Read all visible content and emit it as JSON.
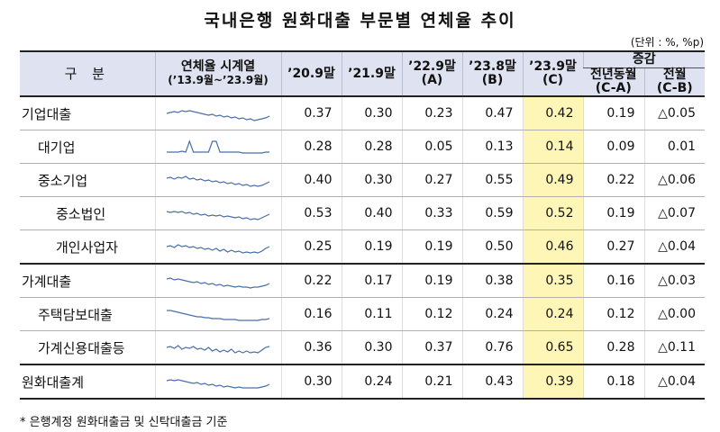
{
  "title": "국내은행 원화대출 부문별 연체율 추이",
  "unit": "(단위 : %, %p)",
  "header": {
    "category": "구 분",
    "spark_line1": "연체율 시계열",
    "spark_line2": "(’13.9월~’23.9월)",
    "col_209": "’20.9말",
    "col_219": "’21.9말",
    "col_229_line1": "’22.9말",
    "col_229_line2": "(A)",
    "col_238_line1": "’23.8말",
    "col_238_line2": "(B)",
    "col_239_line1": "’23.9말",
    "col_239_line2": "(C)",
    "change_group": "증감",
    "yoy_line1": "전년동월",
    "yoy_line2": "(C-A)",
    "mom_line1": "전월",
    "mom_line2": "(C-B)"
  },
  "rows": [
    {
      "name": "기업대출",
      "level": 0,
      "v209": "0.37",
      "v219": "0.30",
      "v229": "0.23",
      "v238": "0.47",
      "v239": "0.42",
      "yoy": "0.19",
      "mom": "△0.05"
    },
    {
      "name": "대기업",
      "level": 1,
      "v209": "0.28",
      "v219": "0.28",
      "v229": "0.05",
      "v238": "0.13",
      "v239": "0.14",
      "yoy": "0.09",
      "mom": "0.01"
    },
    {
      "name": "중소기업",
      "level": 1,
      "v209": "0.40",
      "v219": "0.30",
      "v229": "0.27",
      "v238": "0.55",
      "v239": "0.49",
      "yoy": "0.22",
      "mom": "△0.06"
    },
    {
      "name": "중소법인",
      "level": 2,
      "v209": "0.53",
      "v219": "0.40",
      "v229": "0.33",
      "v238": "0.59",
      "v239": "0.52",
      "yoy": "0.19",
      "mom": "△0.07"
    },
    {
      "name": "개인사업자",
      "level": 2,
      "v209": "0.25",
      "v219": "0.19",
      "v229": "0.19",
      "v238": "0.50",
      "v239": "0.46",
      "yoy": "0.27",
      "mom": "△0.04"
    },
    {
      "name": "가계대출",
      "level": 0,
      "v209": "0.22",
      "v219": "0.17",
      "v229": "0.19",
      "v238": "0.38",
      "v239": "0.35",
      "yoy": "0.16",
      "mom": "△0.03"
    },
    {
      "name": "주택담보대출",
      "level": 1,
      "v209": "0.16",
      "v219": "0.11",
      "v229": "0.12",
      "v238": "0.24",
      "v239": "0.24",
      "yoy": "0.12",
      "mom": "△0.00"
    },
    {
      "name": "가계신용대출등",
      "level": 1,
      "v209": "0.36",
      "v219": "0.30",
      "v229": "0.37",
      "v238": "0.76",
      "v239": "0.65",
      "yoy": "0.28",
      "mom": "△0.11"
    },
    {
      "name": "원화대출계",
      "level": 0,
      "v209": "0.30",
      "v219": "0.24",
      "v229": "0.21",
      "v238": "0.43",
      "v239": "0.39",
      "yoy": "0.18",
      "mom": "△0.04"
    }
  ],
  "footnote": "* 은행계정 원화대출금 및 신탁대출금 기준",
  "colors": {
    "header_bg": "#dfe3f1",
    "highlight": "#fdf6b6",
    "sparkline": "#4a6ea8"
  }
}
